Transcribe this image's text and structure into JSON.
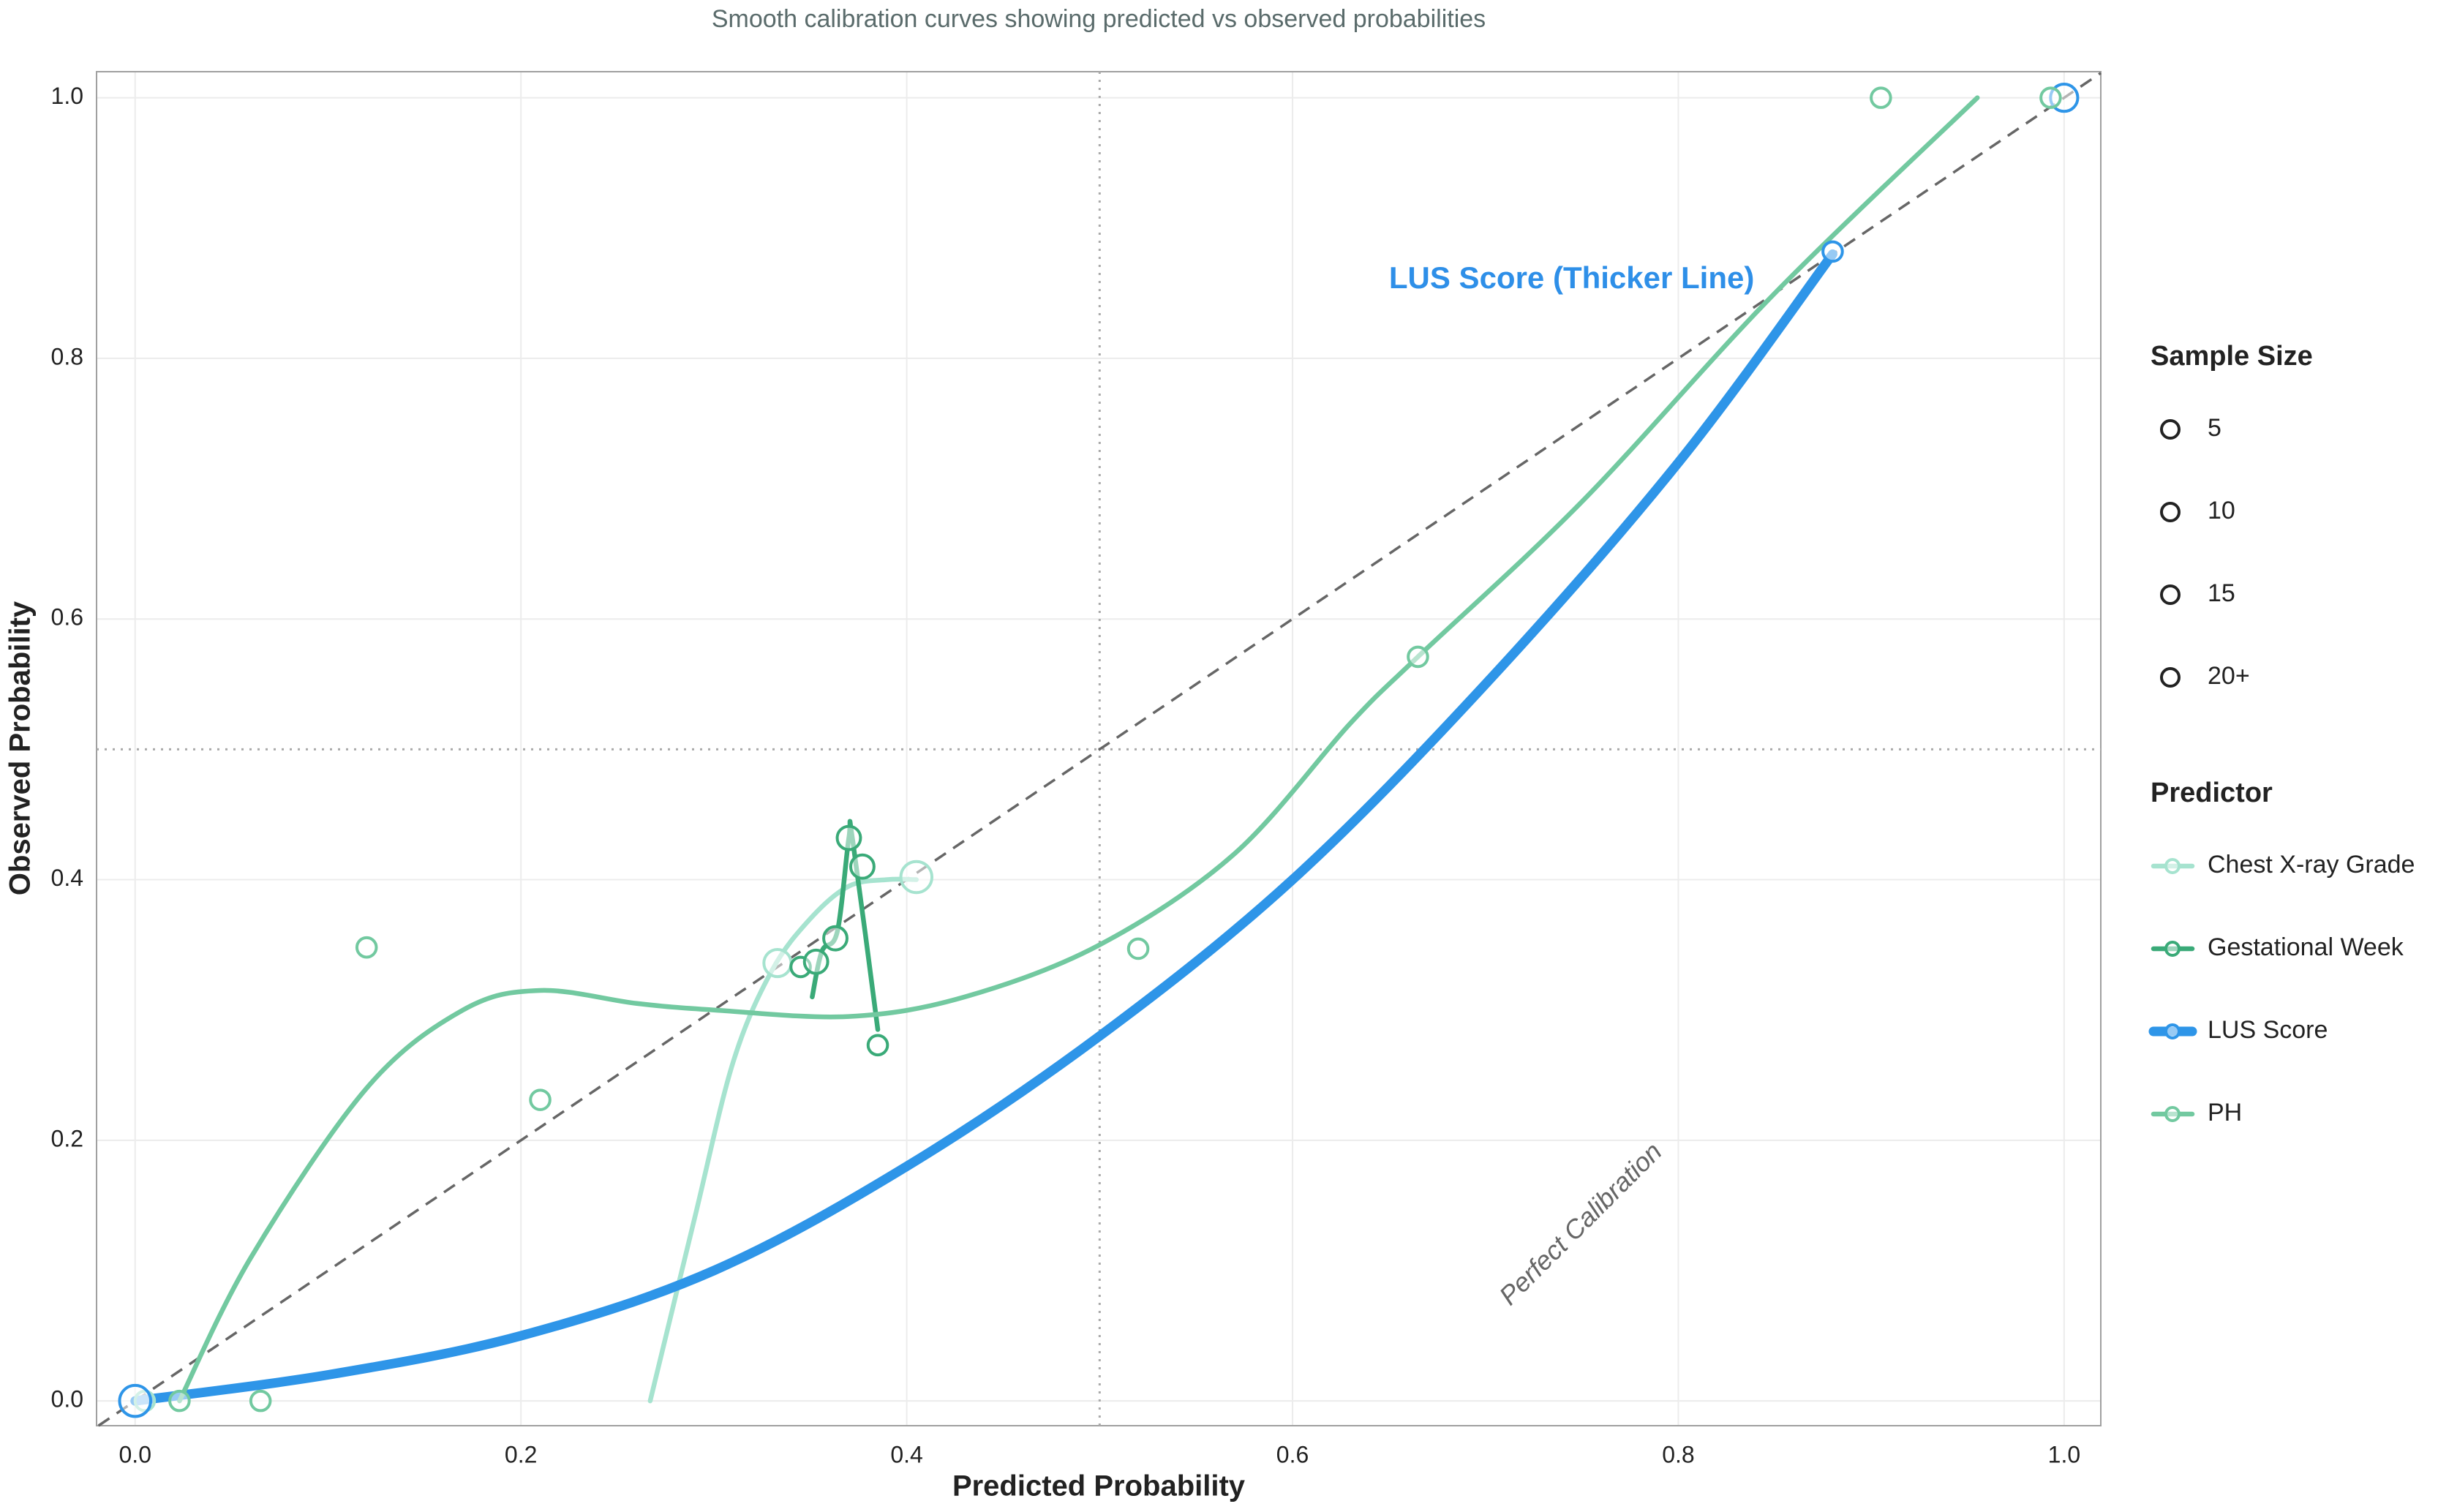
{
  "chart_data": {
    "type": "line",
    "title": "Smooth calibration curves showing predicted vs observed probabilities",
    "x_label": "Predicted Probability",
    "y_label": "Observed Probability",
    "xlim": [
      -0.02,
      1.019
    ],
    "ylim": [
      -0.019,
      1.02
    ],
    "xticks": [
      {
        "value": 0,
        "label": "0.0"
      },
      0.2,
      0.4,
      0.6,
      0.8,
      {
        "value": 1,
        "label": "1.0"
      }
    ],
    "yticks": [
      {
        "value": 0,
        "label": "0.0"
      },
      0.2,
      0.4,
      0.6,
      0.8,
      {
        "value": 1,
        "label": "1.0"
      }
    ],
    "grid": true,
    "reference_lines": {
      "x": 0.5,
      "y": 0.5
    },
    "annotations": [
      "LUS Score (Thicker Line)",
      "Perfect Calibration"
    ],
    "size_legend": {
      "title": "Sample Size",
      "entries": [
        5,
        10,
        15,
        {
          "value": 20,
          "label": "20+"
        }
      ]
    },
    "legend_title": "Predictor",
    "legend_position": "right",
    "series": [
      {
        "name": "Chest X-ray Grade",
        "color": "#a6e3cf",
        "width": 6.5,
        "x": [
          0.267,
          0.29,
          0.31,
          0.33,
          0.35,
          0.37,
          0.39,
          0.405
        ],
        "values": [
          0,
          0.14,
          0.26,
          0.33,
          0.37,
          0.395,
          0.4,
          0.4
        ],
        "points": {
          "x": [
            0.005,
            0.333,
            0.405
          ],
          "values": [
            0,
            0.336,
            0.402
          ],
          "sizes": [
            5,
            15,
            20
          ]
        }
      },
      {
        "name": "Gestational Week",
        "color": "#3aaa78",
        "width": 6.5,
        "x": [
          0.351,
          0.356,
          0.364,
          0.37,
          0.372,
          0.385
        ],
        "values": [
          0.31,
          0.345,
          0.36,
          0.432,
          0.43,
          0.285
        ],
        "points": {
          "x": [
            0.345,
            0.353,
            0.363,
            0.37,
            0.377,
            0.385
          ],
          "values": [
            0.333,
            0.337,
            0.355,
            0.432,
            0.41,
            0.273
          ],
          "sizes": [
            5,
            10,
            10,
            10,
            10,
            5
          ]
        }
      },
      {
        "name": "LUS Score",
        "color": "#2e95e8",
        "width": 13,
        "x": [
          0,
          0.1,
          0.2,
          0.3,
          0.4,
          0.5,
          0.6,
          0.7,
          0.8,
          0.88
        ],
        "values": [
          0,
          0.02,
          0.05,
          0.1,
          0.18,
          0.28,
          0.4,
          0.55,
          0.72,
          0.88
        ],
        "points": {
          "x": [
            0,
            0.88,
            1.0
          ],
          "values": [
            0,
            0.882,
            1.0
          ],
          "sizes": [
            20,
            5,
            15
          ]
        }
      },
      {
        "name": "PH",
        "color": "#72c9a0",
        "width": 6.5,
        "x": [
          0.023,
          0.06,
          0.12,
          0.17,
          0.21,
          0.26,
          0.3,
          0.37,
          0.43,
          0.5,
          0.57,
          0.63,
          0.665,
          0.75,
          0.85,
          0.955
        ],
        "values": [
          0,
          0.11,
          0.24,
          0.3,
          0.315,
          0.305,
          0.3,
          0.295,
          0.31,
          0.35,
          0.42,
          0.52,
          0.571,
          0.69,
          0.85,
          1.0
        ],
        "points": {
          "x": [
            0.023,
            0.065,
            0.12,
            0.21,
            0.52,
            0.665,
            0.905,
            0.993
          ],
          "values": [
            0,
            0,
            0.348,
            0.231,
            0.347,
            0.571,
            1.0,
            1.0
          ],
          "sizes": [
            5,
            5,
            5,
            5,
            5,
            5,
            5,
            5
          ]
        }
      }
    ]
  }
}
